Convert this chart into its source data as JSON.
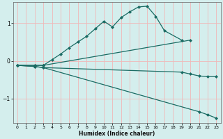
{
  "xlabel": "Humidex (Indice chaleur)",
  "background_color": "#d4eeed",
  "line_color": "#1a6b63",
  "grid_color": "#f0b8b8",
  "xlim": [
    -0.5,
    23.5
  ],
  "ylim": [
    -1.65,
    1.55
  ],
  "xticks": [
    0,
    1,
    2,
    3,
    4,
    5,
    6,
    7,
    8,
    9,
    10,
    11,
    12,
    13,
    14,
    15,
    16,
    17,
    18,
    19,
    20,
    21,
    22,
    23
  ],
  "yticks": [
    -1,
    0,
    1
  ],
  "line1_x": [
    0,
    2,
    3,
    4,
    5,
    6,
    7,
    8,
    9,
    10,
    11,
    12,
    13,
    14,
    15,
    16,
    17,
    19
  ],
  "line1_y": [
    -0.12,
    -0.12,
    -0.12,
    0.03,
    0.18,
    0.35,
    0.5,
    0.65,
    0.85,
    1.05,
    0.9,
    1.15,
    1.3,
    1.43,
    1.45,
    1.18,
    0.8,
    0.55
  ],
  "line2_x": [
    0,
    2,
    3,
    20
  ],
  "line2_y": [
    -0.12,
    -0.12,
    -0.12,
    0.55
  ],
  "line3_x": [
    0,
    2,
    3,
    19,
    20,
    21,
    22,
    23
  ],
  "line3_y": [
    -0.12,
    -0.15,
    -0.18,
    -0.3,
    -0.35,
    -0.4,
    -0.42,
    -0.42
  ],
  "line4_x": [
    0,
    2,
    3,
    21,
    22,
    23
  ],
  "line4_y": [
    -0.12,
    -0.15,
    -0.18,
    -1.35,
    -1.43,
    -1.52
  ]
}
